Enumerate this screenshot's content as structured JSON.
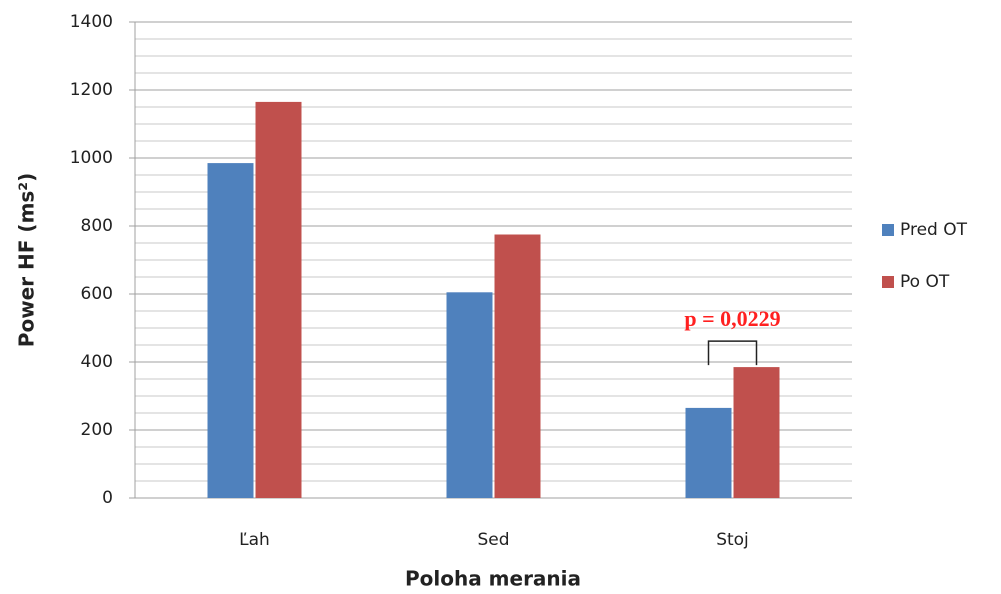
{
  "chart_data": {
    "type": "bar",
    "categories": [
      "Ľah",
      "Sed",
      "Stoj"
    ],
    "series": [
      {
        "name": "Pred OT",
        "color": "#4f81bd",
        "values": [
          985,
          605,
          265
        ]
      },
      {
        "name": "Po OT",
        "color": "#c0504d",
        "values": [
          1165,
          775,
          385
        ]
      }
    ],
    "ylim": [
      0,
      1400
    ],
    "yticks": [
      0,
      200,
      400,
      600,
      800,
      1000,
      1200,
      1400
    ],
    "grid": true,
    "y_label": "Power HF (ms²)",
    "x_label": "Poloha merania",
    "annotation": "p = 0,0229",
    "legend": "right"
  }
}
